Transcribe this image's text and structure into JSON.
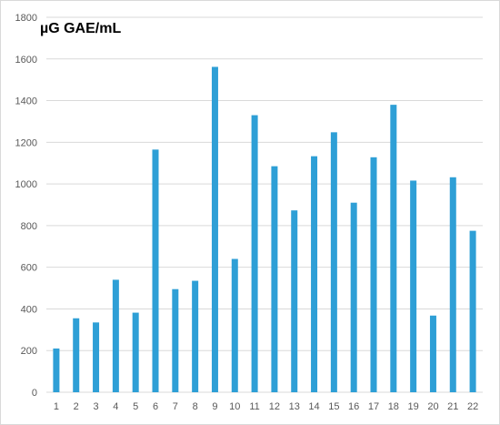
{
  "chart_data": {
    "type": "bar",
    "categories": [
      "1",
      "2",
      "3",
      "4",
      "5",
      "6",
      "7",
      "8",
      "9",
      "10",
      "11",
      "12",
      "13",
      "14",
      "15",
      "16",
      "17",
      "18",
      "19",
      "20",
      "21",
      "22"
    ],
    "values": [
      210,
      355,
      335,
      540,
      382,
      1165,
      495,
      535,
      1562,
      640,
      1330,
      1085,
      873,
      1133,
      1248,
      910,
      1128,
      1380,
      1016,
      368,
      1032,
      775
    ],
    "title": "",
    "xlabel": "",
    "ylabel": "µG GAE/mL",
    "ylim": [
      0,
      1800
    ],
    "yticks": [
      "0",
      "200",
      "400",
      "600",
      "800",
      "1000",
      "1200",
      "1400",
      "1600",
      "1800"
    ],
    "grid": true,
    "bar_color": "#2e9fd6",
    "grid_color": "#d9d9d9",
    "tick_color": "#595959"
  }
}
